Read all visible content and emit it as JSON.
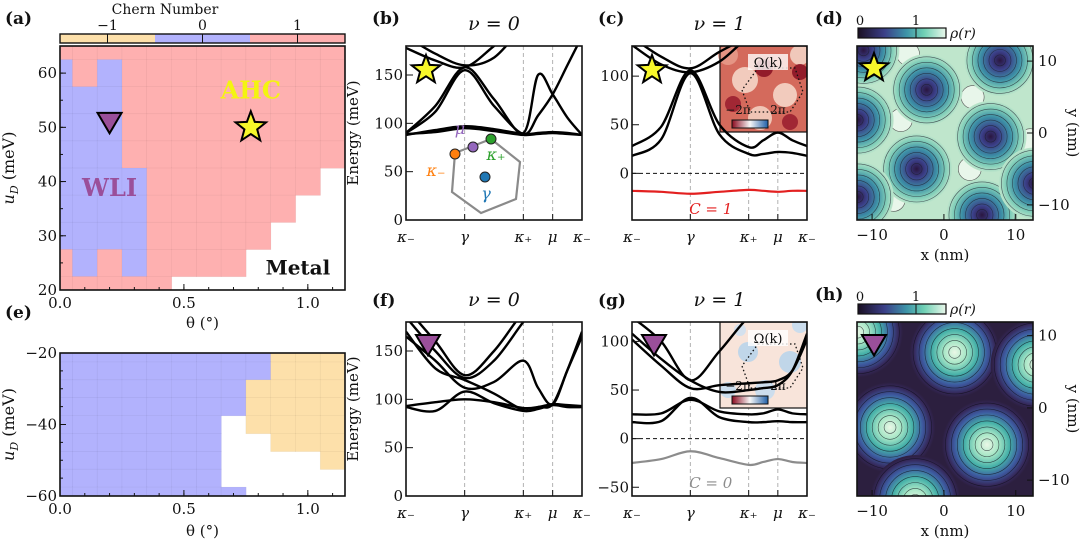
{
  "chart_data": [
    {
      "panel": "(a)",
      "type": "heatmap",
      "xlabel": "θ (°)",
      "ylabel": {
        "sym": "u",
        "sub": "D",
        "unit": "(meV)"
      },
      "xlim": [
        0,
        1.15
      ],
      "ylim": [
        20,
        65
      ],
      "xticks": [
        0,
        0.5,
        1.0
      ],
      "xtick_labels": [
        "0.0",
        "0.5",
        "1.0"
      ],
      "yticks": [
        20,
        30,
        40,
        50,
        60
      ],
      "ytick_labels": [
        "20",
        "30",
        "40",
        "50",
        "60"
      ],
      "theta_centers": [
        0,
        0.1,
        0.2,
        0.3,
        0.4,
        0.5,
        0.6,
        0.7,
        0.8,
        0.9,
        1.0,
        1.1
      ],
      "u_centers": [
        65,
        60,
        55,
        50,
        45,
        40,
        35,
        30,
        25,
        20
      ],
      "chern": [
        [
          1,
          1,
          1,
          1,
          1,
          1,
          1,
          1,
          1,
          1,
          1,
          1
        ],
        [
          0,
          1,
          0,
          1,
          1,
          1,
          1,
          1,
          1,
          1,
          1,
          1
        ],
        [
          0,
          0,
          0,
          1,
          1,
          1,
          1,
          1,
          1,
          1,
          1,
          1
        ],
        [
          0,
          0,
          0,
          1,
          1,
          1,
          1,
          1,
          1,
          1,
          1,
          1
        ],
        [
          0,
          0,
          0,
          1,
          1,
          1,
          1,
          1,
          1,
          1,
          1,
          1
        ],
        [
          0,
          0,
          0,
          0,
          1,
          1,
          1,
          1,
          1,
          1,
          1,
          null
        ],
        [
          0,
          0,
          0,
          0,
          1,
          1,
          1,
          1,
          1,
          1,
          null,
          null
        ],
        [
          0,
          0,
          0,
          0,
          1,
          1,
          1,
          1,
          1,
          null,
          null,
          null
        ],
        [
          1,
          0,
          1,
          0,
          1,
          1,
          1,
          1,
          null,
          null,
          null,
          null
        ],
        [
          1,
          1,
          1,
          1,
          1,
          null,
          null,
          null,
          null,
          null,
          null,
          null
        ]
      ],
      "colorbar": {
        "title": "Chern Number",
        "ticks": [
          -1,
          0,
          1
        ],
        "tick_labels": [
          "−1",
          "0",
          "1"
        ],
        "range": [
          -1.5,
          1.5
        ]
      },
      "phase_colors": {
        "-1": "#fde0aa",
        "0": "#b2b2fd",
        "1": "#feb0b0"
      },
      "annotations": [
        {
          "text": "AHC",
          "theta": 0.77,
          "u": 57,
          "color": "#f4f410"
        },
        {
          "text": "WLI",
          "theta": 0.2,
          "u": 39,
          "color": "#9a4f9a"
        },
        {
          "text": "Metal",
          "theta": 0.96,
          "u": 24.5,
          "color": "#111111"
        }
      ],
      "markers": [
        {
          "shape": "star",
          "theta": 0.77,
          "u": 50,
          "color": "#f7f72a"
        },
        {
          "shape": "triangle-down",
          "theta": 0.2,
          "u": 51,
          "color": "#9a4f9a"
        }
      ]
    },
    {
      "panel": "(b)",
      "type": "line",
      "title": "ν = 0",
      "ylabel": "Energy (meV)",
      "ylim": [
        0,
        180
      ],
      "yticks": [
        0,
        50,
        100,
        150
      ],
      "ytick_labels": [
        "0",
        "50",
        "100",
        "150"
      ],
      "k_path": [
        0,
        0.1667,
        0.3333,
        0.5,
        0.6667,
        0.75,
        0.8333,
        0.9167,
        1
      ],
      "xticks": [
        0,
        0.3333,
        0.6667,
        0.8333,
        1
      ],
      "xtick_labels": [
        "κ₋",
        "γ",
        "κ₊",
        "μ",
        "κ₋"
      ],
      "series": [
        {
          "values": [
            88,
            93,
            97,
            94,
            89,
            90,
            91,
            90,
            88
          ]
        },
        {
          "values": [
            89,
            91,
            95,
            92,
            88,
            89,
            90,
            89,
            88
          ]
        },
        {
          "values": [
            90,
            112,
            155,
            118,
            89,
            108,
            130,
            160,
            190
          ]
        },
        {
          "values": [
            90,
            118,
            158,
            125,
            90,
            150,
            130,
            106,
            88
          ]
        },
        {
          "values": [
            178,
            165,
            158,
            180,
            205,
            205,
            205,
            205,
            205
          ]
        },
        {
          "values": [
            190,
            172,
            160,
            168,
            200,
            205,
            205,
            205,
            205
          ]
        }
      ],
      "bz_inset": {
        "points": [
          {
            "label": "κ₋",
            "color": "#ff7f0e"
          },
          {
            "label": "μ",
            "color": "#9467bd"
          },
          {
            "label": "κ₊",
            "color": "#2ca02c"
          },
          {
            "label": "γ",
            "color": "#1f77b4"
          }
        ]
      }
    },
    {
      "panel": "(c)",
      "type": "line",
      "title": "ν = 1",
      "ylim": [
        -48,
        131
      ],
      "yticks": [
        0,
        50,
        100
      ],
      "ytick_labels": [
        "0",
        "50",
        "100"
      ],
      "k_path": [
        0,
        0.1667,
        0.3333,
        0.5,
        0.6667,
        0.75,
        0.8333,
        0.9167,
        1
      ],
      "xticks": [
        0,
        0.3333,
        0.6667,
        0.8333,
        1
      ],
      "xtick_labels": [
        "κ₋",
        "γ",
        "κ₊",
        "μ",
        "κ₋"
      ],
      "series": [
        {
          "values": [
            -18,
            -19,
            -21,
            -19,
            -17,
            -18,
            -19,
            -18,
            -18
          ],
          "color": "#e32020",
          "label": "C = 1"
        },
        {
          "values": [
            18,
            35,
            103,
            40,
            20,
            20,
            22,
            21,
            18
          ]
        },
        {
          "values": [
            28,
            48,
            106,
            50,
            27,
            34,
            42,
            34,
            28
          ]
        },
        {
          "values": [
            132,
            112,
            104,
            115,
            140,
            140,
            140,
            140,
            140
          ]
        },
        {
          "values": [
            140,
            120,
            108,
            125,
            140,
            140,
            140,
            140,
            140
          ]
        }
      ],
      "inset": {
        "title": "Ω(k)",
        "tick_left": "−2π",
        "tick_right": "2π",
        "colormap": [
          "#8b0a1f",
          "#f7f7f7",
          "#1f5fa8"
        ]
      }
    },
    {
      "panel": "(d)",
      "type": "heatmap",
      "xlabel": "x (nm)",
      "ylabel": "y (nm)",
      "xlim": [
        -12.1,
        12.4
      ],
      "ylim": [
        -12.1,
        12.1
      ],
      "xticks": [
        -10,
        0,
        10
      ],
      "xtick_labels": [
        "−10",
        "0",
        "10"
      ],
      "yticks": [
        -10,
        0,
        10
      ],
      "ytick_labels": [
        "−10",
        "0",
        "10"
      ],
      "colorbar": {
        "label": "ρ(r)",
        "tick_labels": [
          "0",
          "1"
        ]
      },
      "density_minima": [
        [
          -2.4,
          6
        ],
        [
          7.8,
          10.1
        ],
        [
          6.5,
          -0.5
        ],
        [
          -3.8,
          -5
        ],
        [
          5.3,
          -11.4
        ],
        [
          -12,
          1.8
        ],
        [
          -12,
          -8.9
        ],
        [
          -11.2,
          11.5
        ],
        [
          12.6,
          -7
        ]
      ],
      "density_maxima": [
        [
          -5,
          11
        ],
        [
          4,
          5
        ],
        [
          -6,
          1.8
        ],
        [
          3.6,
          -5
        ],
        [
          -7,
          -9.3
        ],
        [
          12,
          -1
        ]
      ]
    },
    {
      "panel": "(e)",
      "type": "heatmap",
      "xlabel": "θ (°)",
      "ylabel": {
        "sym": "u",
        "sub": "D",
        "unit": "(meV)"
      },
      "xlim": [
        0,
        1.15
      ],
      "ylim": [
        -60,
        -20
      ],
      "xticks": [
        0,
        0.5,
        1.0
      ],
      "xtick_labels": [
        "0.0",
        "0.5",
        "1.0"
      ],
      "yticks": [
        -60,
        -40,
        -20
      ],
      "ytick_labels": [
        "−60",
        "−40",
        "−20"
      ],
      "theta_centers": [
        0,
        0.1,
        0.2,
        0.3,
        0.4,
        0.5,
        0.6,
        0.7,
        0.8,
        0.9,
        1.0,
        1.1
      ],
      "u_centers": [
        -20,
        -25,
        -30,
        -35,
        -40,
        -45,
        -50,
        -55,
        -60
      ],
      "chern": [
        [
          0,
          0,
          0,
          0,
          0,
          0,
          0,
          0,
          0,
          -1,
          -1,
          -1
        ],
        [
          0,
          0,
          0,
          0,
          0,
          0,
          0,
          0,
          0,
          -1,
          -1,
          -1
        ],
        [
          0,
          0,
          0,
          0,
          0,
          0,
          0,
          0,
          -1,
          -1,
          -1,
          -1
        ],
        [
          0,
          0,
          0,
          0,
          0,
          0,
          0,
          0,
          -1,
          -1,
          -1,
          -1
        ],
        [
          0,
          0,
          0,
          0,
          0,
          0,
          0,
          null,
          -1,
          -1,
          -1,
          -1
        ],
        [
          0,
          0,
          0,
          0,
          0,
          0,
          0,
          null,
          null,
          -1,
          -1,
          -1
        ],
        [
          0,
          0,
          0,
          0,
          0,
          0,
          0,
          null,
          null,
          null,
          null,
          -1
        ],
        [
          0,
          0,
          0,
          0,
          0,
          0,
          0,
          null,
          null,
          null,
          null,
          null
        ],
        [
          0,
          0,
          0,
          0,
          0,
          0,
          0,
          0,
          null,
          null,
          null,
          null
        ]
      ]
    },
    {
      "panel": "(f)",
      "type": "line",
      "title": "ν = 0",
      "ylabel": "Energy (meV)",
      "ylim": [
        0,
        180
      ],
      "yticks": [
        0,
        50,
        100,
        150
      ],
      "ytick_labels": [
        "0",
        "50",
        "100",
        "150"
      ],
      "k_path": [
        0,
        0.1667,
        0.3333,
        0.5,
        0.6667,
        0.75,
        0.8333,
        0.9167,
        1
      ],
      "xticks": [
        0,
        0.3333,
        0.6667,
        0.8333,
        1
      ],
      "xtick_labels": [
        "κ₋",
        "γ",
        "κ₊",
        "μ",
        "κ₋"
      ],
      "series": [
        {
          "values": [
            93,
            97,
            100,
            97,
            91,
            92,
            95,
            94,
            93
          ]
        },
        {
          "values": [
            92,
            88,
            108,
            96,
            88,
            90,
            94,
            92,
            92
          ]
        },
        {
          "values": [
            170,
            132,
            120,
            106,
            89,
            92,
            95,
            130,
            170
          ]
        },
        {
          "values": [
            165,
            140,
            112,
            118,
            140,
            112,
            95,
            130,
            165
          ]
        },
        {
          "values": [
            185,
            150,
            122,
            140,
            180,
            195,
            195,
            195,
            195
          ]
        },
        {
          "values": [
            195,
            160,
            125,
            150,
            190,
            195,
            195,
            195,
            195
          ]
        }
      ]
    },
    {
      "panel": "(g)",
      "type": "line",
      "title": "ν = 1",
      "ylim": [
        -59,
        120
      ],
      "yticks": [
        -50,
        0,
        50,
        100
      ],
      "ytick_labels": [
        "−50",
        "0",
        "50",
        "100"
      ],
      "k_path": [
        0,
        0.1667,
        0.3333,
        0.5,
        0.6667,
        0.75,
        0.8333,
        0.9167,
        1
      ],
      "xticks": [
        0,
        0.3333,
        0.6667,
        0.8333,
        1
      ],
      "xtick_labels": [
        "κ₋",
        "γ",
        "κ₊",
        "μ",
        "κ₋"
      ],
      "series": [
        {
          "values": [
            -25,
            -21,
            -13,
            -20,
            -27,
            -24,
            -21,
            -24,
            -25
          ],
          "color": "#8c8c8c",
          "label": "C = 0"
        },
        {
          "values": [
            17,
            18,
            42,
            22,
            17,
            17,
            18,
            17,
            17
          ]
        },
        {
          "values": [
            25,
            26,
            40,
            28,
            25,
            26,
            30,
            26,
            25
          ]
        },
        {
          "values": [
            102,
            75,
            52,
            55,
            57,
            58,
            60,
            70,
            102
          ]
        },
        {
          "values": [
            108,
            82,
            60,
            48,
            50,
            52,
            55,
            70,
            108
          ]
        },
        {
          "values": [
            125,
            100,
            60,
            90,
            125,
            125,
            125,
            125,
            125
          ]
        }
      ],
      "inset": {
        "title": "Ω(k)",
        "tick_left": "−2π",
        "tick_right": "2π",
        "colormap": [
          "#8b0a1f",
          "#f7f7f7",
          "#1f5fa8"
        ]
      }
    },
    {
      "panel": "(h)",
      "type": "heatmap",
      "xlabel": "x (nm)",
      "ylabel": "y (nm)",
      "xlim": [
        -12.1,
        12.4
      ],
      "ylim": [
        -12.2,
        11.9
      ],
      "xticks": [
        -10,
        0,
        10
      ],
      "xtick_labels": [
        "−10",
        "0",
        "10"
      ],
      "yticks": [
        -10,
        0,
        10
      ],
      "ytick_labels": [
        "−10",
        "0",
        "10"
      ],
      "colorbar": {
        "label": "ρ(r)",
        "tick_labels": [
          "0",
          "1"
        ]
      },
      "density_maxima": [
        [
          1.5,
          7.7
        ],
        [
          -7.5,
          -2.7
        ],
        [
          6,
          -5.1
        ],
        [
          -12,
          10.5
        ],
        [
          12.8,
          6
        ],
        [
          -4,
          -12.8
        ]
      ]
    }
  ]
}
